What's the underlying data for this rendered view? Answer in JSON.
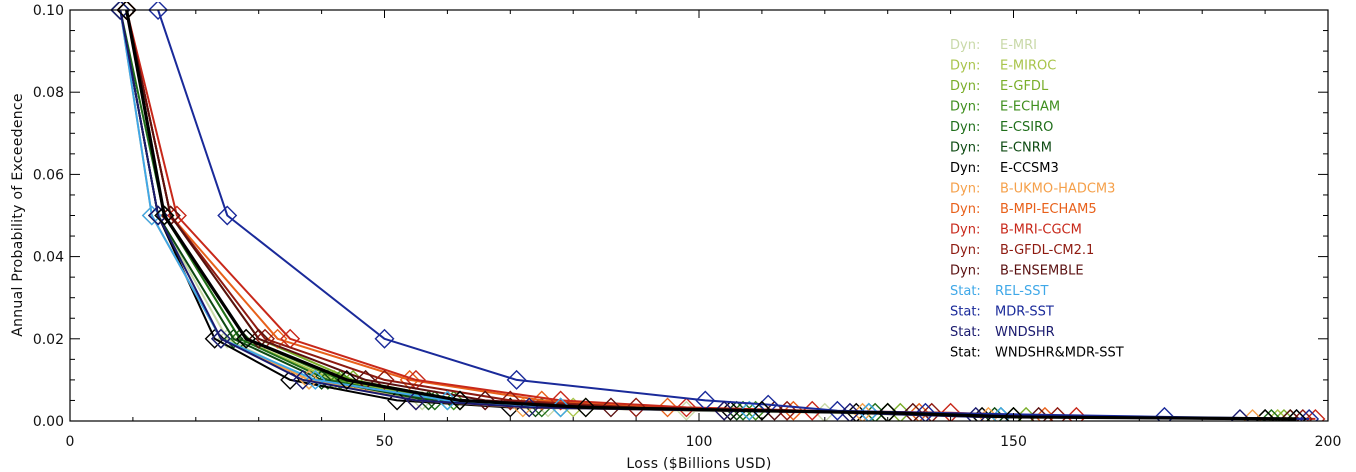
{
  "chart_data": {
    "type": "line",
    "title": "",
    "xlabel": "Loss ($Billions USD)",
    "ylabel": "Annual Probability of Exceedence",
    "xlim": [
      0,
      200
    ],
    "ylim": [
      0,
      0.1
    ],
    "xticks": [
      0,
      50,
      100,
      150,
      200
    ],
    "xtick_labels": [
      "0",
      "50",
      "100",
      "150",
      "200"
    ],
    "yticks": [
      0,
      0.02,
      0.04,
      0.06,
      0.08,
      0.1
    ],
    "ytick_labels": [
      "0.00",
      "0.02",
      "0.04",
      "0.06",
      "0.08",
      "0.10"
    ],
    "grid": false,
    "legend_position": "top-right",
    "series": [
      {
        "prefix": "Dyn:",
        "label": "E-MRI",
        "color": "#c9d9a8",
        "x": [
          8,
          14,
          25,
          38,
          56,
          76,
          98,
          120,
          145,
          192
        ],
        "y": [
          0.1,
          0.05,
          0.02,
          0.01,
          0.005,
          0.0033,
          0.0025,
          0.002,
          0.001,
          0.0005
        ]
      },
      {
        "prefix": "Dyn:",
        "label": "E-MIROC",
        "color": "#a8c44a",
        "x": [
          9,
          15,
          27,
          42,
          60,
          80,
          108,
          130,
          150,
          192
        ],
        "y": [
          0.1,
          0.05,
          0.02,
          0.01,
          0.005,
          0.0033,
          0.0025,
          0.002,
          0.001,
          0.0005
        ]
      },
      {
        "prefix": "Dyn:",
        "label": "E-GFDL",
        "color": "#7aae2a",
        "x": [
          9,
          16,
          30,
          45,
          62,
          82,
          110,
          132,
          152,
          193
        ],
        "y": [
          0.1,
          0.05,
          0.02,
          0.01,
          0.005,
          0.0033,
          0.0025,
          0.002,
          0.001,
          0.0005
        ]
      },
      {
        "prefix": "Dyn:",
        "label": "E-ECHAM",
        "color": "#3f8f1e",
        "x": [
          9,
          15,
          28,
          43,
          61,
          78,
          109,
          130,
          150,
          194
        ],
        "y": [
          0.1,
          0.05,
          0.02,
          0.01,
          0.005,
          0.0033,
          0.0025,
          0.002,
          0.001,
          0.0005
        ]
      },
      {
        "prefix": "Dyn:",
        "label": "E-CSIRO",
        "color": "#1f6e1a",
        "x": [
          8,
          15,
          27,
          41,
          58,
          75,
          107,
          128,
          148,
          191
        ],
        "y": [
          0.1,
          0.05,
          0.02,
          0.01,
          0.005,
          0.0033,
          0.0025,
          0.002,
          0.001,
          0.0005
        ]
      },
      {
        "prefix": "Dyn:",
        "label": "E-CNRM",
        "color": "#0d4a12",
        "x": [
          8,
          14,
          26,
          40,
          57,
          74,
          106,
          127,
          147,
          190
        ],
        "y": [
          0.1,
          0.05,
          0.02,
          0.01,
          0.005,
          0.0033,
          0.0025,
          0.002,
          0.001,
          0.0005
        ]
      },
      {
        "prefix": "Dyn:",
        "label": "E-CCSM3",
        "color": "#000000",
        "x": [
          8,
          14,
          23,
          35,
          52,
          70,
          105,
          125,
          145,
          190
        ],
        "y": [
          0.1,
          0.05,
          0.02,
          0.01,
          0.005,
          0.0033,
          0.0025,
          0.002,
          0.001,
          0.0005
        ]
      },
      {
        "prefix": "Dyn:",
        "label": "B-UKMO-HADCM3",
        "color": "#f5a04a",
        "x": [
          8,
          13,
          24,
          38,
          55,
          72,
          104,
          126,
          146,
          188
        ],
        "y": [
          0.1,
          0.05,
          0.02,
          0.01,
          0.005,
          0.0033,
          0.0025,
          0.002,
          0.001,
          0.0005
        ]
      },
      {
        "prefix": "Dyn:",
        "label": "B-MPI-ECHAM5",
        "color": "#e8601a",
        "x": [
          9,
          16,
          33,
          54,
          75,
          95,
          115,
          135,
          155,
          195
        ],
        "y": [
          0.1,
          0.05,
          0.02,
          0.01,
          0.005,
          0.0033,
          0.0025,
          0.002,
          0.001,
          0.0005
        ]
      },
      {
        "prefix": "Dyn:",
        "label": "B-MRI-CGCM",
        "color": "#c8281a",
        "x": [
          9,
          17,
          35,
          55,
          78,
          98,
          118,
          140,
          160,
          198
        ],
        "y": [
          0.1,
          0.05,
          0.02,
          0.01,
          0.005,
          0.0033,
          0.0025,
          0.002,
          0.001,
          0.0005
        ]
      },
      {
        "prefix": "Dyn:",
        "label": "B-GFDL-CM2.1",
        "color": "#8e1a10",
        "x": [
          9,
          16,
          31,
          50,
          70,
          90,
          114,
          137,
          157,
          196
        ],
        "y": [
          0.1,
          0.05,
          0.02,
          0.01,
          0.005,
          0.0033,
          0.0025,
          0.002,
          0.001,
          0.0005
        ]
      },
      {
        "prefix": "Dyn:",
        "label": "B-ENSEMBLE",
        "color": "#5a1010",
        "x": [
          9,
          16,
          30,
          47,
          66,
          86,
          112,
          134,
          154,
          194
        ],
        "y": [
          0.1,
          0.05,
          0.02,
          0.01,
          0.005,
          0.0033,
          0.0025,
          0.002,
          0.001,
          0.0005
        ]
      },
      {
        "prefix": "Stat:",
        "label": "REL-SST",
        "color": "#3fa8e8",
        "x": [
          8,
          13,
          24,
          39,
          60,
          78,
          108,
          127,
          148,
          195
        ],
        "y": [
          0.1,
          0.05,
          0.02,
          0.01,
          0.005,
          0.0033,
          0.0025,
          0.002,
          0.001,
          0.0005
        ]
      },
      {
        "prefix": "Stat:",
        "label": "MDR-SST",
        "color": "#1a2a9a",
        "x": [
          14,
          25,
          50,
          71,
          101,
          111,
          122,
          136,
          174,
          197
        ],
        "y": [
          0.1,
          0.05,
          0.02,
          0.01,
          0.005,
          0.004,
          0.0025,
          0.002,
          0.001,
          0.0005
        ]
      },
      {
        "prefix": "Stat:",
        "label": "WNDSHR",
        "color": "#1a1a6e",
        "x": [
          8,
          14,
          24,
          37,
          55,
          73,
          104,
          124,
          144,
          186
        ],
        "y": [
          0.1,
          0.05,
          0.02,
          0.01,
          0.005,
          0.0033,
          0.0025,
          0.002,
          0.001,
          0.0005
        ]
      },
      {
        "prefix": "Stat:",
        "label": "WNDSHR&MDR-SST",
        "color": "#000000",
        "x": [
          9,
          15,
          28,
          44,
          62,
          82,
          110,
          130,
          150,
          195
        ],
        "y": [
          0.1,
          0.05,
          0.02,
          0.01,
          0.005,
          0.0033,
          0.0025,
          0.002,
          0.001,
          0.0005
        ]
      }
    ]
  }
}
